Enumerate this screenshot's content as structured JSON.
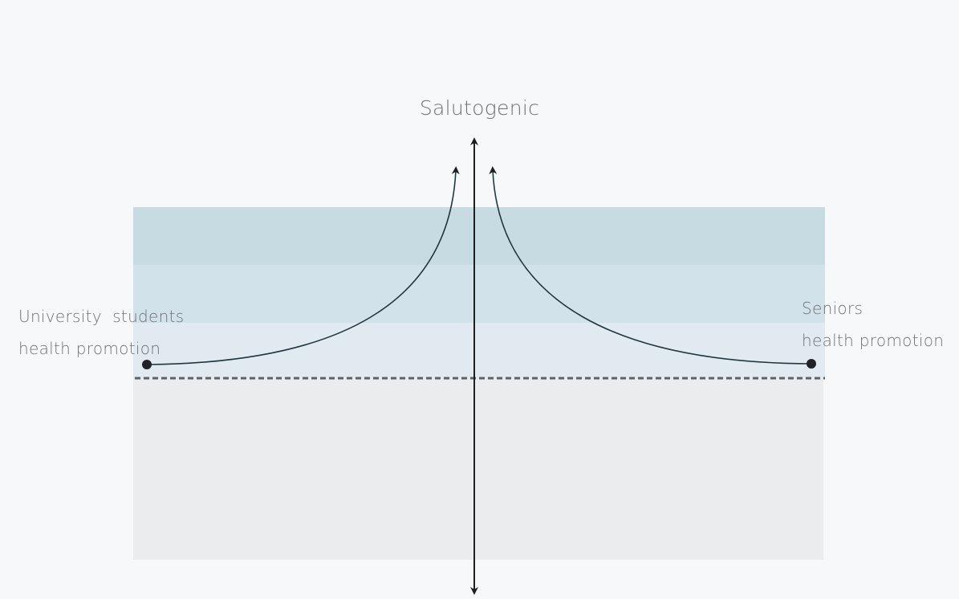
{
  "diagram": {
    "axis_top_label": "Salutogenic",
    "left_point": {
      "line1": "University  students",
      "line2": "health promotion"
    },
    "right_point": {
      "line1": "Seniors",
      "line2": "health promotion"
    }
  },
  "colors": {
    "background": "#f7f8fa",
    "band_top": "#c6dbe2",
    "band_middle": "#d1e2ea",
    "band_lower": "#e1eaf1",
    "lower_region": "#ebecee",
    "curve": "#22363f",
    "axis": "#1e1f22",
    "threshold_dash": "#5e6166",
    "label_text": "#6f7177"
  }
}
